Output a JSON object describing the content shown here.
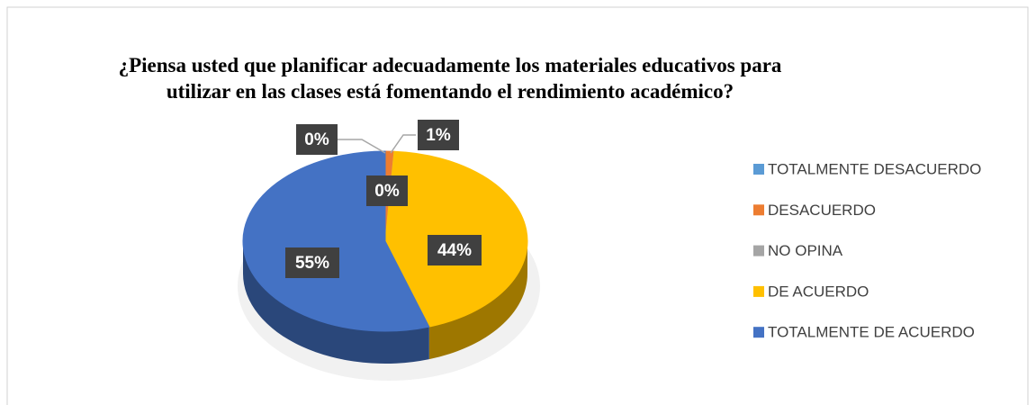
{
  "chart_data": {
    "type": "pie",
    "title": "¿Piensa usted que planificar adecuadamente los materiales educativos para utilizar en las clases está fomentando el rendimiento académico?",
    "categories": [
      "TOTALMENTE DESACUERDO",
      "DESACUERDO",
      "NO OPINA",
      "DE ACUERDO",
      "TOTALMENTE DE ACUERDO"
    ],
    "values": [
      0,
      1,
      0,
      44,
      55
    ],
    "value_labels": [
      "0%",
      "1%",
      "0%",
      "44%",
      "55%"
    ],
    "colors": [
      "#5b9bd5",
      "#ed7d31",
      "#a5a5a5",
      "#ffc000",
      "#4472c4"
    ],
    "legend": "right"
  }
}
